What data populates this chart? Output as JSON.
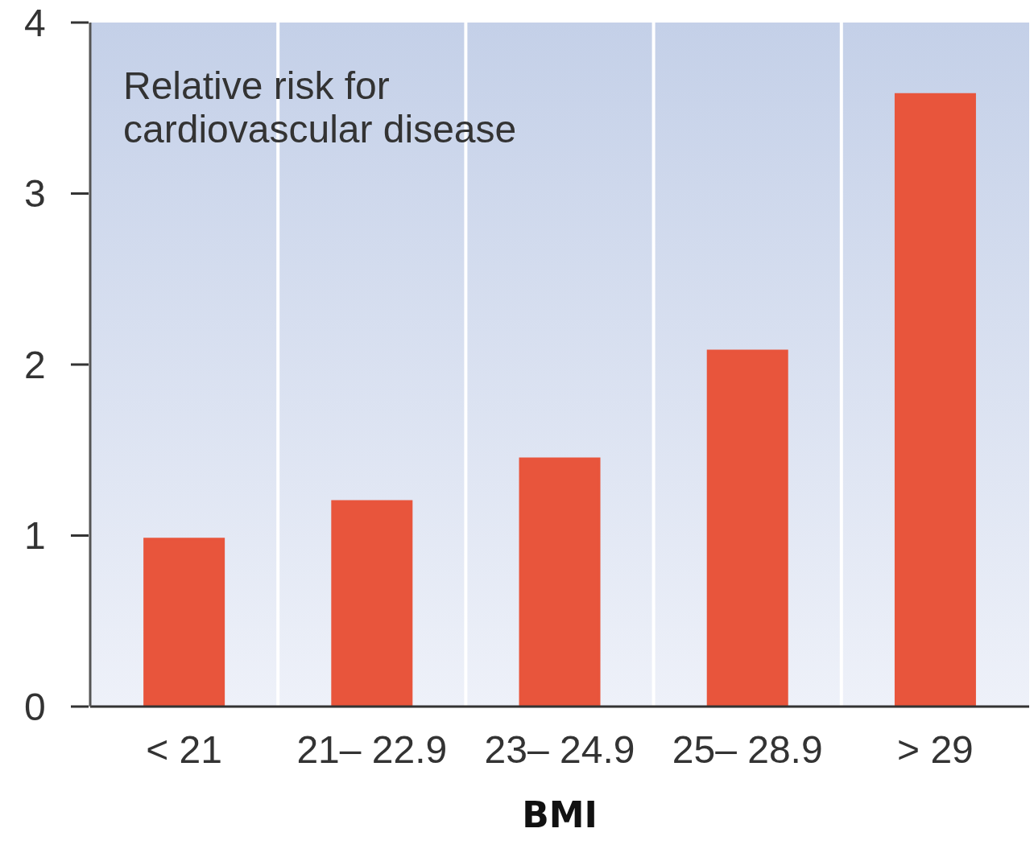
{
  "chart_data": {
    "type": "bar",
    "title": "Relative risk for cardiovascular disease",
    "xlabel": "BMI",
    "categories": [
      "< 21",
      "21– 22.9",
      "23– 24.9",
      "25– 28.9",
      "> 29"
    ],
    "values": [
      0.98,
      1.2,
      1.45,
      2.08,
      3.58
    ],
    "color": "#e8553c",
    "ylim": [
      0,
      4
    ],
    "yticks": [
      0,
      1,
      2,
      3,
      4
    ],
    "grid": "x"
  }
}
